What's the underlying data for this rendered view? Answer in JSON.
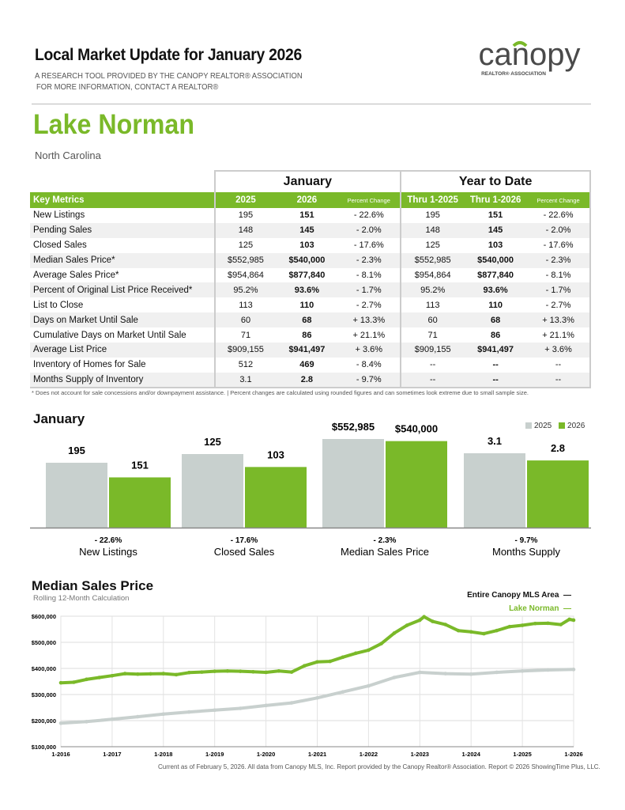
{
  "header": {
    "title": "Local Market Update for January 2026",
    "subtitle1": "A RESEARCH TOOL PROVIDED BY THE CANOPY REALTOR® ASSOCIATION",
    "subtitle2": "FOR MORE INFORMATION, CONTACT A REALTOR®",
    "logo_text": "canopy",
    "logo_sub": "REALTOR® ASSOCIATION"
  },
  "area": {
    "name": "Lake Norman",
    "state": "North Carolina"
  },
  "colors": {
    "green": "#7ab929",
    "gray": "#c8d0ce"
  },
  "table": {
    "groups": [
      "January",
      "Year to Date"
    ],
    "columns": [
      "Key Metrics",
      "2025",
      "2026",
      "Percent Change",
      "Thru 1-2025",
      "Thru 1-2026",
      "Percent Change"
    ],
    "rows": [
      [
        "New Listings",
        "195",
        "151",
        "- 22.6%",
        "195",
        "151",
        "- 22.6%"
      ],
      [
        "Pending Sales",
        "148",
        "145",
        "- 2.0%",
        "148",
        "145",
        "- 2.0%"
      ],
      [
        "Closed Sales",
        "125",
        "103",
        "- 17.6%",
        "125",
        "103",
        "- 17.6%"
      ],
      [
        "Median Sales Price*",
        "$552,985",
        "$540,000",
        "- 2.3%",
        "$552,985",
        "$540,000",
        "- 2.3%"
      ],
      [
        "Average Sales Price*",
        "$954,864",
        "$877,840",
        "- 8.1%",
        "$954,864",
        "$877,840",
        "- 8.1%"
      ],
      [
        "Percent of Original List Price Received*",
        "95.2%",
        "93.6%",
        "- 1.7%",
        "95.2%",
        "93.6%",
        "- 1.7%"
      ],
      [
        "List to Close",
        "113",
        "110",
        "- 2.7%",
        "113",
        "110",
        "- 2.7%"
      ],
      [
        "Days on Market Until Sale",
        "60",
        "68",
        "+ 13.3%",
        "60",
        "68",
        "+ 13.3%"
      ],
      [
        "Cumulative Days on Market Until Sale",
        "71",
        "86",
        "+ 21.1%",
        "71",
        "86",
        "+ 21.1%"
      ],
      [
        "Average List Price",
        "$909,155",
        "$941,497",
        "+ 3.6%",
        "$909,155",
        "$941,497",
        "+ 3.6%"
      ],
      [
        "Inventory of Homes for Sale",
        "512",
        "469",
        "- 8.4%",
        "--",
        "--",
        "--"
      ],
      [
        "Months Supply of Inventory",
        "3.1",
        "2.8",
        "- 9.7%",
        "--",
        "--",
        "--"
      ]
    ],
    "footnote": "* Does not account for sale concessions and/or downpayment assistance.  |  Percent changes are calculated using rounded figures and can sometimes look extreme due to small sample size."
  },
  "chart_data": [
    {
      "type": "bar",
      "title": "January",
      "legend": [
        "2025",
        "2026"
      ],
      "legend_placement": "top-right",
      "categories": [
        "New Listings",
        "Closed Sales",
        "Median Sales Price",
        "Months Supply"
      ],
      "series": [
        {
          "name": "2025",
          "values": [
            195,
            125,
            552985,
            3.1
          ],
          "labels": [
            "195",
            "125",
            "$552,985",
            "3.1"
          ]
        },
        {
          "name": "2026",
          "values": [
            151,
            103,
            540000,
            2.8
          ],
          "labels": [
            "151",
            "103",
            "$540,000",
            "2.8"
          ]
        }
      ],
      "changes": [
        "- 22.6%",
        "- 17.6%",
        "- 2.3%",
        "- 9.7%"
      ]
    },
    {
      "type": "line",
      "title": "Median Sales Price",
      "subtitle": "Rolling 12-Month Calculation",
      "grid": true,
      "legend_placement": "top-right",
      "ylim": [
        100000,
        600000
      ],
      "yticks": [
        "$100,000",
        "$200,000",
        "$300,000",
        "$400,000",
        "$500,000",
        "$600,000"
      ],
      "xticks": [
        "1-2016",
        "1-2017",
        "1-2018",
        "1-2019",
        "1-2020",
        "1-2021",
        "1-2022",
        "1-2023",
        "1-2024",
        "1-2025",
        "1-2026"
      ],
      "series": [
        {
          "name": "Entire Canopy MLS Area",
          "color": "#c8d0ce",
          "x": [
            "2016-01",
            "2016-07",
            "2017-01",
            "2017-07",
            "2018-01",
            "2018-07",
            "2019-01",
            "2019-07",
            "2020-01",
            "2020-07",
            "2021-01",
            "2021-07",
            "2022-01",
            "2022-07",
            "2023-01",
            "2023-07",
            "2024-01",
            "2024-07",
            "2025-01",
            "2025-07",
            "2026-01"
          ],
          "y": [
            190000,
            196000,
            205000,
            215000,
            225000,
            233000,
            240000,
            247000,
            258000,
            268000,
            287000,
            310000,
            333000,
            365000,
            385000,
            380000,
            378000,
            385000,
            390000,
            394000,
            396000
          ]
        },
        {
          "name": "Lake Norman",
          "color": "#7ab929",
          "x": [
            "2016-01",
            "2016-04",
            "2016-07",
            "2016-10",
            "2017-01",
            "2017-04",
            "2017-07",
            "2017-10",
            "2018-01",
            "2018-04",
            "2018-07",
            "2018-10",
            "2019-01",
            "2019-04",
            "2019-07",
            "2019-10",
            "2020-01",
            "2020-04",
            "2020-07",
            "2020-10",
            "2021-01",
            "2021-04",
            "2021-07",
            "2021-10",
            "2022-01",
            "2022-04",
            "2022-07",
            "2022-10",
            "2023-01",
            "2023-02",
            "2023-04",
            "2023-07",
            "2023-10",
            "2024-01",
            "2024-04",
            "2024-07",
            "2024-10",
            "2025-01",
            "2025-04",
            "2025-07",
            "2025-10",
            "2025-12",
            "2026-01"
          ],
          "y": [
            345000,
            347000,
            358000,
            365000,
            372000,
            380000,
            378000,
            379000,
            380000,
            376000,
            384000,
            386000,
            389000,
            390000,
            389000,
            387000,
            385000,
            390000,
            386000,
            410000,
            425000,
            427000,
            443000,
            458000,
            470000,
            495000,
            535000,
            565000,
            585000,
            598000,
            580000,
            568000,
            545000,
            540000,
            533000,
            545000,
            560000,
            565000,
            572000,
            573000,
            568000,
            588000,
            585000
          ]
        }
      ]
    }
  ],
  "footer": {
    "credit": "Current as of February 5, 2026. All data from Canopy MLS, Inc. Report provided by the Canopy Realtor® Association. Report © 2026 ShowingTime Plus, LLC."
  }
}
